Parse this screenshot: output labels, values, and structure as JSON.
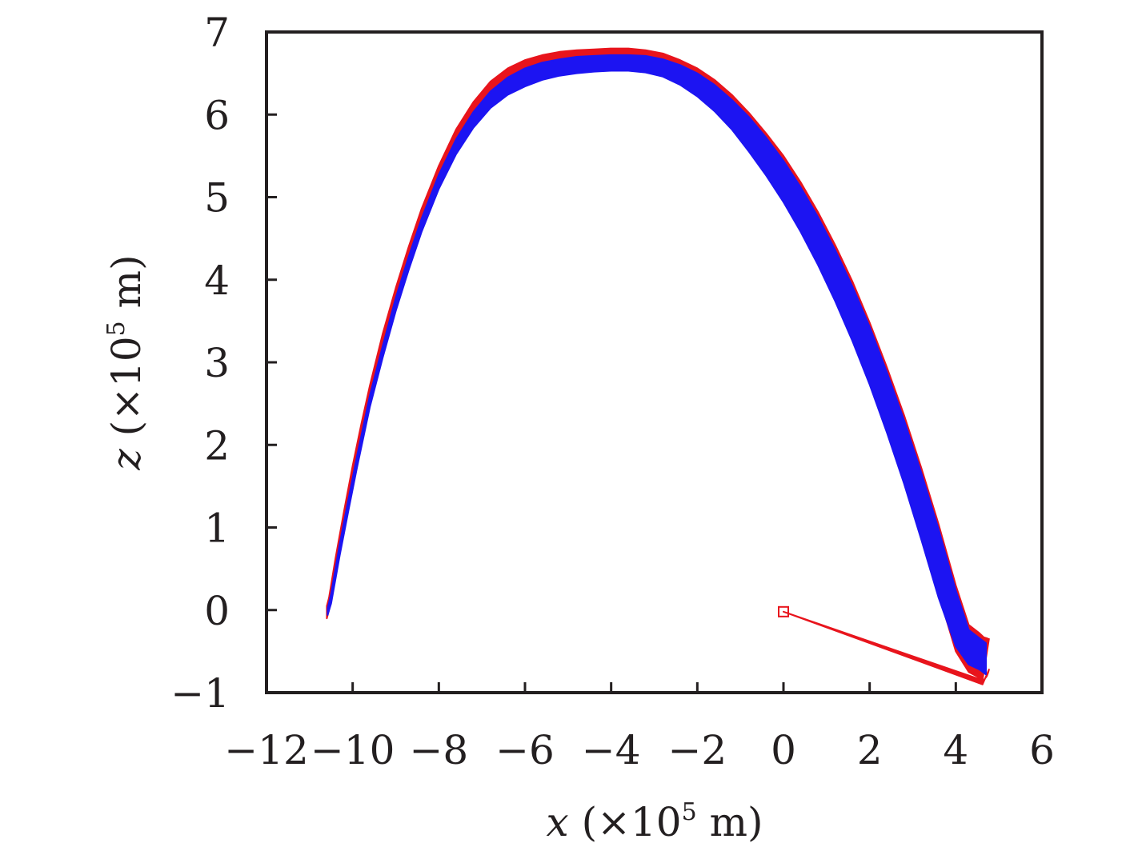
{
  "chart_data": {
    "type": "scatter",
    "title": "",
    "xlabel": {
      "variable": "x",
      "prefix": " (×10",
      "exponent": "5",
      "suffix": " m)"
    },
    "ylabel": {
      "variable": "z",
      "prefix": " (×10",
      "exponent": "5",
      "suffix": " m)"
    },
    "xlim": [
      -12,
      6
    ],
    "ylim": [
      -1,
      7
    ],
    "xticks": [
      -12,
      -10,
      -8,
      -6,
      -4,
      -2,
      0,
      2,
      4,
      6
    ],
    "yticks": [
      -1,
      0,
      1,
      2,
      3,
      4,
      5,
      6,
      7
    ],
    "xtick_labels": [
      "−12",
      "−10",
      "−8",
      "−6",
      "−4",
      "−2",
      "0",
      "2",
      "4",
      "6"
    ],
    "ytick_labels": [
      "−1",
      "0",
      "1",
      "2",
      "3",
      "4",
      "5",
      "6",
      "7"
    ],
    "grid": false,
    "legend": "none",
    "series": [
      {
        "marker": "red-square",
        "color": "#e8141c",
        "x": [
          -10.6,
          -10.55,
          -10.4,
          -10.2,
          -10.0,
          -9.8,
          -9.6,
          -9.3,
          -9.0,
          -8.7,
          -8.4,
          -8.0,
          -7.6,
          -7.2,
          -6.8,
          -6.4,
          -6.0,
          -5.6,
          -5.2,
          -4.8,
          -4.4,
          -4.0,
          -3.6,
          -3.2,
          -2.8,
          -2.4,
          -2.0,
          -1.6,
          -1.2,
          -0.8,
          -0.4,
          0.0,
          0.4,
          0.8,
          1.2,
          1.6,
          2.0,
          2.4,
          2.8,
          3.2,
          3.6,
          4.0,
          4.3,
          4.55,
          4.65,
          4.72,
          4.75,
          4.77,
          4.62,
          0.0
        ],
        "upper": [
          0.05,
          0.15,
          0.62,
          1.2,
          1.75,
          2.25,
          2.72,
          3.35,
          3.9,
          4.4,
          4.86,
          5.38,
          5.82,
          6.15,
          6.4,
          6.56,
          6.66,
          6.72,
          6.76,
          6.78,
          6.79,
          6.8,
          6.8,
          6.78,
          6.74,
          6.66,
          6.56,
          6.42,
          6.24,
          6.02,
          5.77,
          5.5,
          5.18,
          4.82,
          4.42,
          3.98,
          3.48,
          2.94,
          2.36,
          1.72,
          1.04,
          0.3,
          -0.18,
          -0.28,
          -0.33,
          -0.34,
          -0.35,
          -0.35,
          -0.85,
          -0.02
        ],
        "lower": [
          -0.1,
          0.0,
          0.46,
          1.03,
          1.58,
          2.08,
          2.56,
          3.2,
          3.75,
          4.25,
          4.7,
          5.2,
          5.62,
          5.95,
          6.18,
          6.34,
          6.44,
          6.52,
          6.56,
          6.59,
          6.61,
          6.62,
          6.62,
          6.6,
          6.55,
          6.45,
          6.3,
          6.12,
          5.9,
          5.62,
          5.32,
          5.0,
          4.64,
          4.24,
          3.8,
          3.3,
          2.78,
          2.2,
          1.58,
          0.9,
          0.2,
          -0.5,
          -0.75,
          -0.82,
          -0.85,
          -0.8,
          -0.76,
          -0.72,
          -0.9,
          -0.02
        ]
      },
      {
        "marker": "blue-dot",
        "color": "#1c14f2",
        "x": [
          -10.58,
          -10.5,
          -10.3,
          -10.1,
          -9.9,
          -9.6,
          -9.3,
          -9.0,
          -8.7,
          -8.4,
          -8.0,
          -7.6,
          -7.2,
          -6.8,
          -6.4,
          -6.0,
          -5.6,
          -5.2,
          -4.8,
          -4.4,
          -4.0,
          -3.6,
          -3.2,
          -2.8,
          -2.4,
          -2.0,
          -1.6,
          -1.2,
          -0.8,
          -0.4,
          0.0,
          0.4,
          0.8,
          1.2,
          1.6,
          2.0,
          2.4,
          2.8,
          3.2,
          3.6,
          4.0,
          4.3,
          4.55,
          4.65,
          4.7
        ],
        "upper": [
          0.02,
          0.2,
          0.8,
          1.34,
          1.86,
          2.6,
          3.2,
          3.78,
          4.28,
          4.74,
          5.27,
          5.7,
          6.03,
          6.28,
          6.45,
          6.56,
          6.63,
          6.67,
          6.7,
          6.71,
          6.72,
          6.72,
          6.71,
          6.67,
          6.6,
          6.5,
          6.36,
          6.18,
          5.97,
          5.72,
          5.44,
          5.12,
          4.76,
          4.36,
          3.92,
          3.43,
          2.88,
          2.3,
          1.66,
          0.98,
          0.24,
          -0.24,
          -0.34,
          -0.38,
          -0.4
        ],
        "lower": [
          -0.06,
          0.08,
          0.66,
          1.2,
          1.72,
          2.46,
          3.06,
          3.62,
          4.12,
          4.58,
          5.1,
          5.52,
          5.84,
          6.08,
          6.24,
          6.34,
          6.42,
          6.47,
          6.5,
          6.52,
          6.53,
          6.53,
          6.51,
          6.46,
          6.36,
          6.22,
          6.04,
          5.82,
          5.55,
          5.26,
          4.94,
          4.58,
          4.18,
          3.74,
          3.26,
          2.73,
          2.15,
          1.53,
          0.85,
          0.15,
          -0.44,
          -0.66,
          -0.72,
          -0.76,
          -0.78
        ]
      }
    ],
    "annotations": [
      {
        "shape": "square",
        "color": "#e8141c",
        "x": 0.0,
        "y": -0.02
      }
    ]
  }
}
